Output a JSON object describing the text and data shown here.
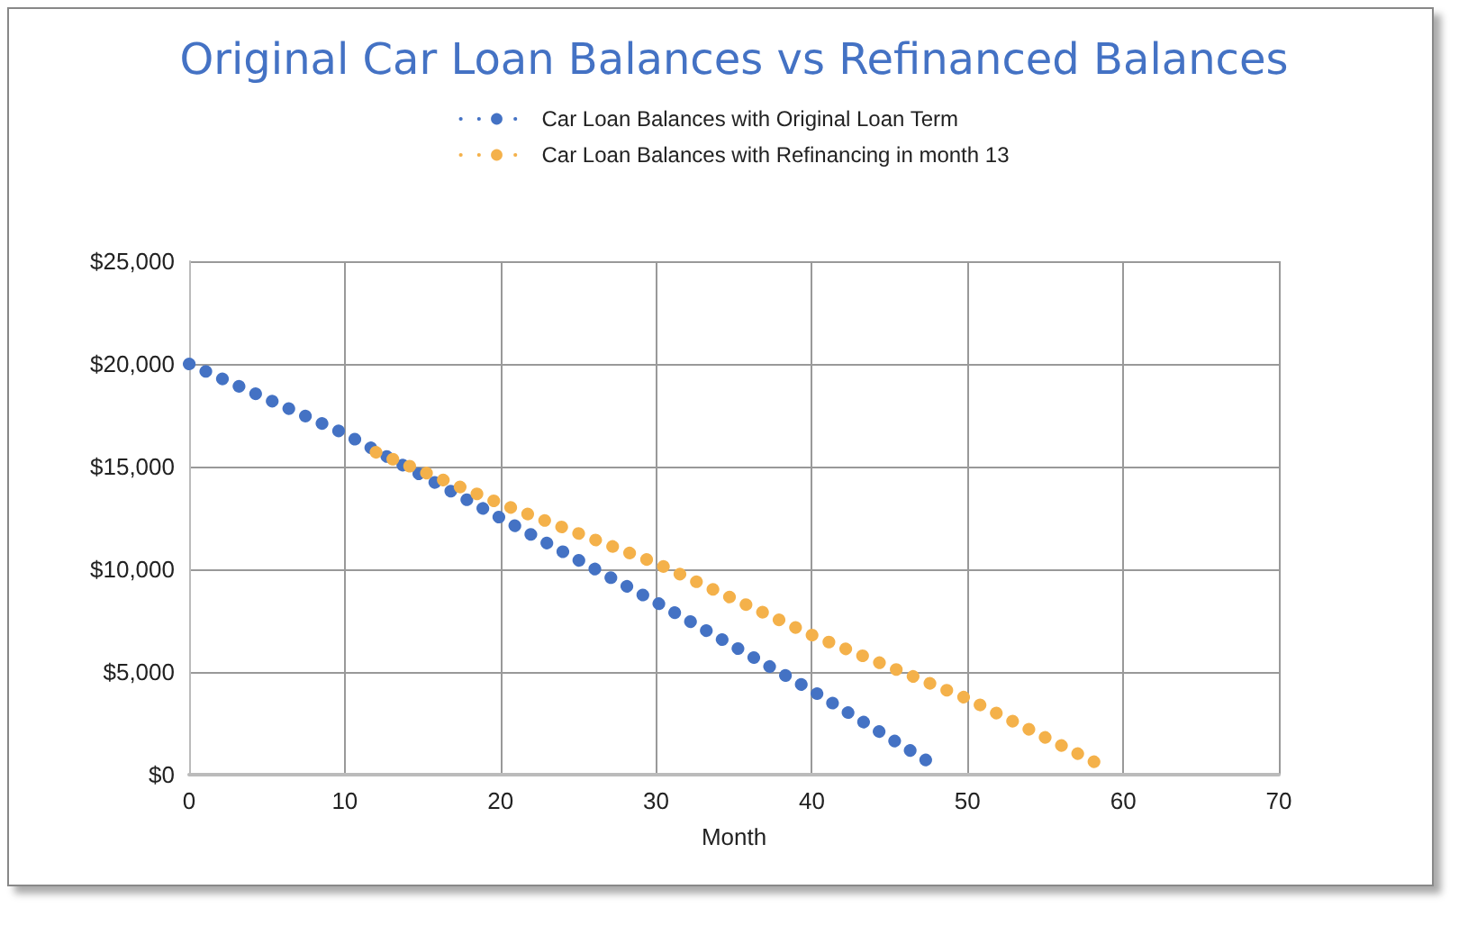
{
  "chart_data": {
    "type": "line",
    "title": "Original Car Loan Balances vs Refinanced Balances",
    "xlabel": "Month",
    "series": [
      {
        "name": "Car Loan Balances with Original Loan Term",
        "color": "#4472c4",
        "x": [
          0,
          10,
          20,
          30,
          40,
          48
        ],
        "values": [
          20000,
          16600,
          12500,
          8400,
          4100,
          400
        ]
      },
      {
        "name": "Car Loan Balances with Refinancing in month 13",
        "color": "#f4b14a",
        "x": [
          12,
          20,
          30,
          40,
          50,
          59
        ],
        "values": [
          15700,
          13200,
          10300,
          6800,
          3700,
          300
        ]
      }
    ],
    "xlim": [
      0,
      70
    ],
    "xticks": [
      0,
      10,
      20,
      30,
      40,
      50,
      60,
      70
    ],
    "ylim": [
      0,
      25000
    ],
    "yticks": [
      {
        "value": 0,
        "label": "$0"
      },
      {
        "value": 5000,
        "label": "$5,000"
      },
      {
        "value": 10000,
        "label": "$10,000"
      },
      {
        "value": 15000,
        "label": "$15,000"
      },
      {
        "value": 20000,
        "label": "$20,000"
      },
      {
        "value": 25000,
        "label": "$25,000"
      }
    ],
    "grid": true,
    "legend": "top",
    "marker": "none",
    "line_style": "dotted"
  }
}
